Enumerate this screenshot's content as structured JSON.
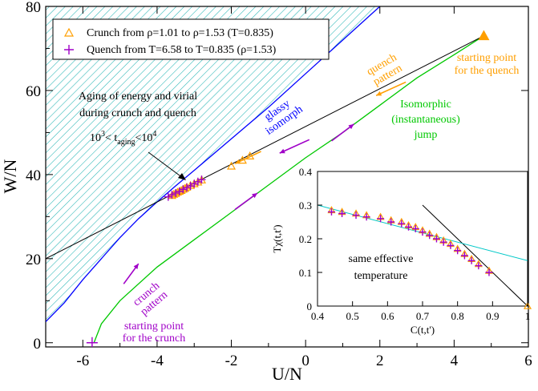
{
  "colors": {
    "crunch": "#ff9f00",
    "quench": "#a000c8",
    "isomorph": "#0000ff",
    "jump": "#00c800",
    "hatch": "#24b4b4",
    "inset_fdt": "#00c8c8",
    "axes": "#000000"
  },
  "chart_data": [
    {
      "type": "line",
      "title": "",
      "xlabel": "U/N",
      "ylabel": "W/N",
      "xlim": [
        -7,
        6
      ],
      "ylim": [
        -1,
        80
      ],
      "xticks": [
        -6,
        -4,
        -2,
        0,
        2,
        4,
        6
      ],
      "yticks": [
        0,
        20,
        40,
        60,
        80
      ],
      "grid": false,
      "legend": {
        "position": "top-left",
        "entries": [
          {
            "label": "Crunch  from ρ=1.01 to ρ=1.53 (T=0.835)",
            "marker": "triangle",
            "color": "crunch"
          },
          {
            "label": "Quench from T=6.58 to T=0.835 (ρ=1.53)",
            "marker": "plus",
            "color": "quench"
          }
        ]
      },
      "series": [
        {
          "name": "glassy isomorph",
          "color": "isomorph",
          "x": [
            -7.0,
            -6.5,
            -6.0,
            -5.5,
            -5.0,
            -4.5,
            -4.0,
            -3.5,
            -3.0,
            -2.0,
            -1.0,
            0.0,
            1.0,
            2.0
          ],
          "y": [
            5.0,
            9.5,
            15.0,
            20.0,
            25.0,
            29.5,
            33.5,
            37.3,
            41.0,
            48.5,
            56.0,
            64.0,
            72.0,
            80.0
          ]
        },
        {
          "name": "isomorphic (instantaneous) jump",
          "color": "jump",
          "x": [
            -5.7,
            -5.5,
            -5.0,
            -4.0,
            -3.0,
            -2.0,
            -1.0,
            0.0,
            1.0,
            2.0,
            3.0,
            4.0,
            4.8
          ],
          "y": [
            0.0,
            4.5,
            10.0,
            18.0,
            24.5,
            31.0,
            37.5,
            44.0,
            50.0,
            56.5,
            63.0,
            68.5,
            73.0
          ]
        },
        {
          "name": "black line",
          "color": "axes",
          "x": [
            -7.0,
            4.8
          ],
          "y": [
            20.0,
            73.0
          ]
        },
        {
          "name": "Crunch  from ρ=1.01 to ρ=1.53 (T=0.835)",
          "marker": "triangle",
          "color": "crunch",
          "x": [
            -3.6,
            -3.55,
            -3.5,
            -3.45,
            -3.4,
            -3.35,
            -3.3,
            -3.25,
            -3.2,
            -3.1,
            -3.0,
            -2.9,
            -2.8,
            -2.0,
            -1.7,
            -1.5
          ],
          "y": [
            35.0,
            35.3,
            35.5,
            35.8,
            36.0,
            36.2,
            36.5,
            36.7,
            37.0,
            37.4,
            37.8,
            38.2,
            38.7,
            42.0,
            43.4,
            44.4
          ]
        },
        {
          "name": "Quench from T=6.58 to T=0.835 (ρ=1.53)",
          "marker": "plus",
          "color": "quench",
          "x": [
            -5.75,
            -3.7,
            -3.6,
            -3.5,
            -3.4,
            -3.3,
            -3.2,
            -3.1,
            -3.0,
            -2.9,
            -2.8
          ],
          "y": [
            0.0,
            34.7,
            35.2,
            35.6,
            36.0,
            36.5,
            36.9,
            37.3,
            37.8,
            38.3,
            38.8
          ]
        },
        {
          "name": "starting point for the quench",
          "marker": "filled-triangle",
          "color": "crunch",
          "x": [
            4.8
          ],
          "y": [
            73.0
          ]
        }
      ],
      "annotations": {
        "glassy_isomorph": "glassy\nisomorph",
        "quench_pattern": "quench\npattern",
        "quench_start": "starting point\nfor the quench",
        "aging": "Aging of energy and virial\nduring crunch and quench",
        "aging_range": "10^3 < t_aging < 10^4",
        "jump": "Isomorphic\n(instantaneous)\njump",
        "crunch_pattern": "crunch\npattern",
        "crunch_start": "starting point\nfor the crunch"
      }
    },
    {
      "type": "scatter",
      "title": "",
      "xlabel": "C(t,t')",
      "ylabel": "Tχ(t,t')",
      "xlim": [
        0.4,
        1.0
      ],
      "ylim": [
        0,
        0.4
      ],
      "xticks": [
        0.4,
        0.5,
        0.6,
        0.7,
        0.8,
        0.9,
        1.0
      ],
      "yticks": [
        0,
        0.1,
        0.2,
        0.3,
        0.4
      ],
      "annotation": "same effective\ntemperature",
      "series": [
        {
          "name": "FDT line",
          "color": "axes",
          "x": [
            0.7,
            1.0
          ],
          "y": [
            0.3,
            0.0
          ]
        },
        {
          "name": "effective-temperature line",
          "color": "inset_fdt",
          "x": [
            0.4,
            1.0
          ],
          "y": [
            0.3,
            0.135
          ]
        },
        {
          "name": "crunch",
          "marker": "triangle",
          "color": "crunch",
          "x": [
            0.44,
            0.47,
            0.51,
            0.54,
            0.58,
            0.61,
            0.64,
            0.66,
            0.68,
            0.7,
            0.72,
            0.74,
            0.76,
            0.78,
            0.8,
            0.82,
            0.84,
            0.86,
            0.89,
            1.0
          ],
          "y": [
            0.285,
            0.28,
            0.275,
            0.27,
            0.265,
            0.255,
            0.25,
            0.24,
            0.235,
            0.225,
            0.215,
            0.205,
            0.195,
            0.185,
            0.17,
            0.155,
            0.14,
            0.125,
            0.105,
            0.0
          ]
        },
        {
          "name": "quench",
          "marker": "plus",
          "color": "quench",
          "x": [
            0.44,
            0.47,
            0.51,
            0.54,
            0.58,
            0.61,
            0.64,
            0.66,
            0.68,
            0.7,
            0.72,
            0.74,
            0.76,
            0.78,
            0.8,
            0.82,
            0.84,
            0.86,
            0.89
          ],
          "y": [
            0.28,
            0.275,
            0.27,
            0.265,
            0.26,
            0.25,
            0.245,
            0.235,
            0.23,
            0.22,
            0.21,
            0.2,
            0.19,
            0.18,
            0.165,
            0.15,
            0.135,
            0.12,
            0.1
          ]
        }
      ]
    }
  ]
}
